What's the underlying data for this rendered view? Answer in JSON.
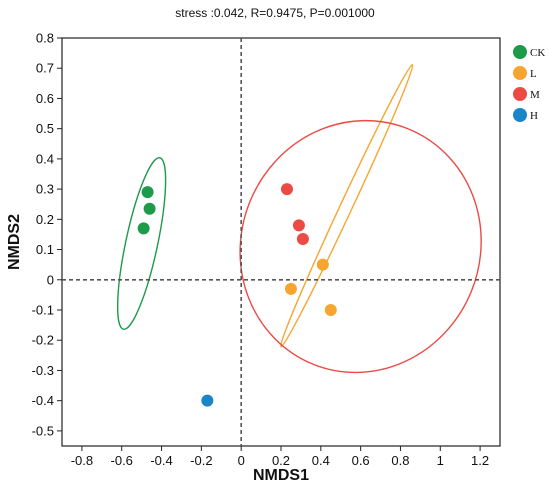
{
  "chart_data": {
    "type": "scatter",
    "title": "stress :0.042, R=0.9475, P=0.001000",
    "xlabel": "NMDS1",
    "ylabel": "NMDS2",
    "xlim": [
      -0.9,
      1.3
    ],
    "ylim": [
      -0.55,
      0.8
    ],
    "x_ticks": [
      "-0.8",
      "-0.6",
      "-0.4",
      "-0.2",
      "0",
      "0.2",
      "0.4",
      "0.6",
      "0.8",
      "1",
      "1.2"
    ],
    "y_ticks": [
      "0.8",
      "0.7",
      "0.6",
      "0.5",
      "0.4",
      "0.3",
      "0.2",
      "0.1",
      "0",
      "-0.1",
      "-0.2",
      "-0.3",
      "-0.4",
      "-0.5"
    ],
    "reference_lines": {
      "x": 0,
      "y": 0,
      "style": "dashed"
    },
    "grid": false,
    "legend_position": "right",
    "series": [
      {
        "name": "CK",
        "color": "#1e9a4b",
        "points": [
          {
            "x": -0.47,
            "y": 0.29
          },
          {
            "x": -0.46,
            "y": 0.235
          },
          {
            "x": -0.49,
            "y": 0.17
          }
        ],
        "ellipse": {
          "cx": -0.5,
          "cy": 0.12,
          "rx": 0.08,
          "ry": 0.29,
          "angle": 12
        }
      },
      {
        "name": "L",
        "color": "#f7a531",
        "points": [
          {
            "x": 0.41,
            "y": 0.05
          },
          {
            "x": 0.25,
            "y": -0.03
          },
          {
            "x": 0.45,
            "y": -0.1
          }
        ],
        "ellipse": {
          "cx": 0.53,
          "cy": 0.245,
          "rx": 0.03,
          "ry": 0.515,
          "angle": 25
        }
      },
      {
        "name": "M",
        "color": "#ec4a45",
        "points": [
          {
            "x": 0.23,
            "y": 0.3
          },
          {
            "x": 0.29,
            "y": 0.18
          },
          {
            "x": 0.31,
            "y": 0.135
          }
        ],
        "ellipse": {
          "cx": 0.6,
          "cy": 0.11,
          "rx": 0.6,
          "ry": 0.42,
          "angle": 22
        }
      },
      {
        "name": "H",
        "color": "#1a86c8",
        "points": [
          {
            "x": -0.17,
            "y": -0.4
          }
        ],
        "ellipse": null
      }
    ]
  }
}
